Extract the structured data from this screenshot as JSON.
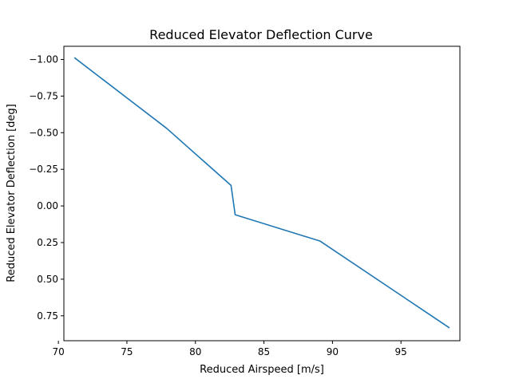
{
  "chart_data": {
    "type": "line",
    "title": "Reduced Elevator Deflection Curve",
    "xlabel": "Reduced Airspeed [m/s]",
    "ylabel": "Reduced Elevator Deflection [deg]",
    "xlim": [
      70.4,
      99.3
    ],
    "ylim": [
      0.92,
      -1.09
    ],
    "y_inverted": true,
    "grid": false,
    "x_ticks": [
      70,
      75,
      80,
      85,
      90,
      95
    ],
    "x_tick_labels": [
      "70",
      "75",
      "80",
      "85",
      "90",
      "95"
    ],
    "y_ticks": [
      -1.0,
      -0.75,
      -0.5,
      -0.25,
      0.0,
      0.25,
      0.5,
      0.75
    ],
    "y_tick_labels": [
      "−1.00",
      "−0.75",
      "−0.50",
      "−0.25",
      "0.00",
      "0.25",
      "0.50",
      "0.75"
    ],
    "series": [
      {
        "color": "#1f77b4",
        "x": [
          71.2,
          77.9,
          82.6,
          82.9,
          89.1,
          98.5
        ],
        "y": [
          -1.01,
          -0.53,
          -0.14,
          0.06,
          0.24,
          0.83
        ]
      }
    ]
  }
}
